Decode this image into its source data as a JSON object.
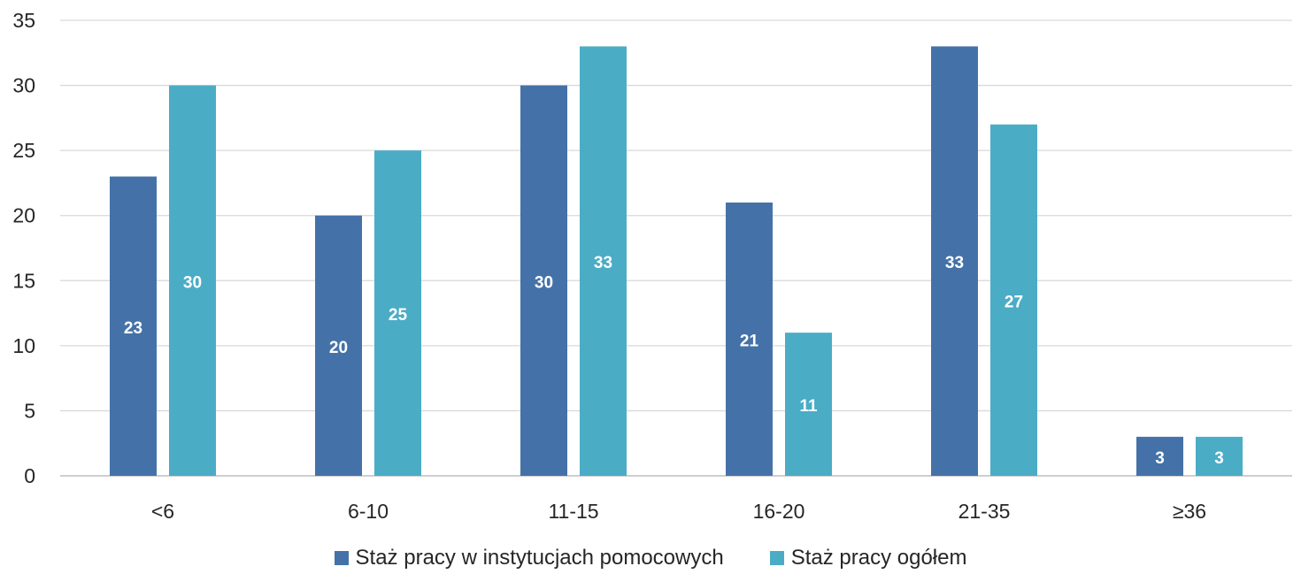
{
  "chart_data": {
    "type": "bar",
    "categories": [
      "<6",
      "6-10",
      "11-15",
      "16-20",
      "21-35",
      "≥36"
    ],
    "series": [
      {
        "name": "Staż pracy w instytucjach pomocowych",
        "values": [
          23,
          20,
          30,
          21,
          33,
          3
        ],
        "color": "#4472A8"
      },
      {
        "name": "Staż pracy ogółem",
        "values": [
          30,
          25,
          33,
          11,
          27,
          3
        ],
        "color": "#4BACC6"
      }
    ],
    "title": "",
    "xlabel": "",
    "ylabel": "",
    "ylim": [
      0,
      35
    ],
    "yticks": [
      "0",
      "5",
      "10",
      "15",
      "20",
      "25",
      "30",
      "35"
    ],
    "grid": true,
    "legend_position": "bottom"
  }
}
